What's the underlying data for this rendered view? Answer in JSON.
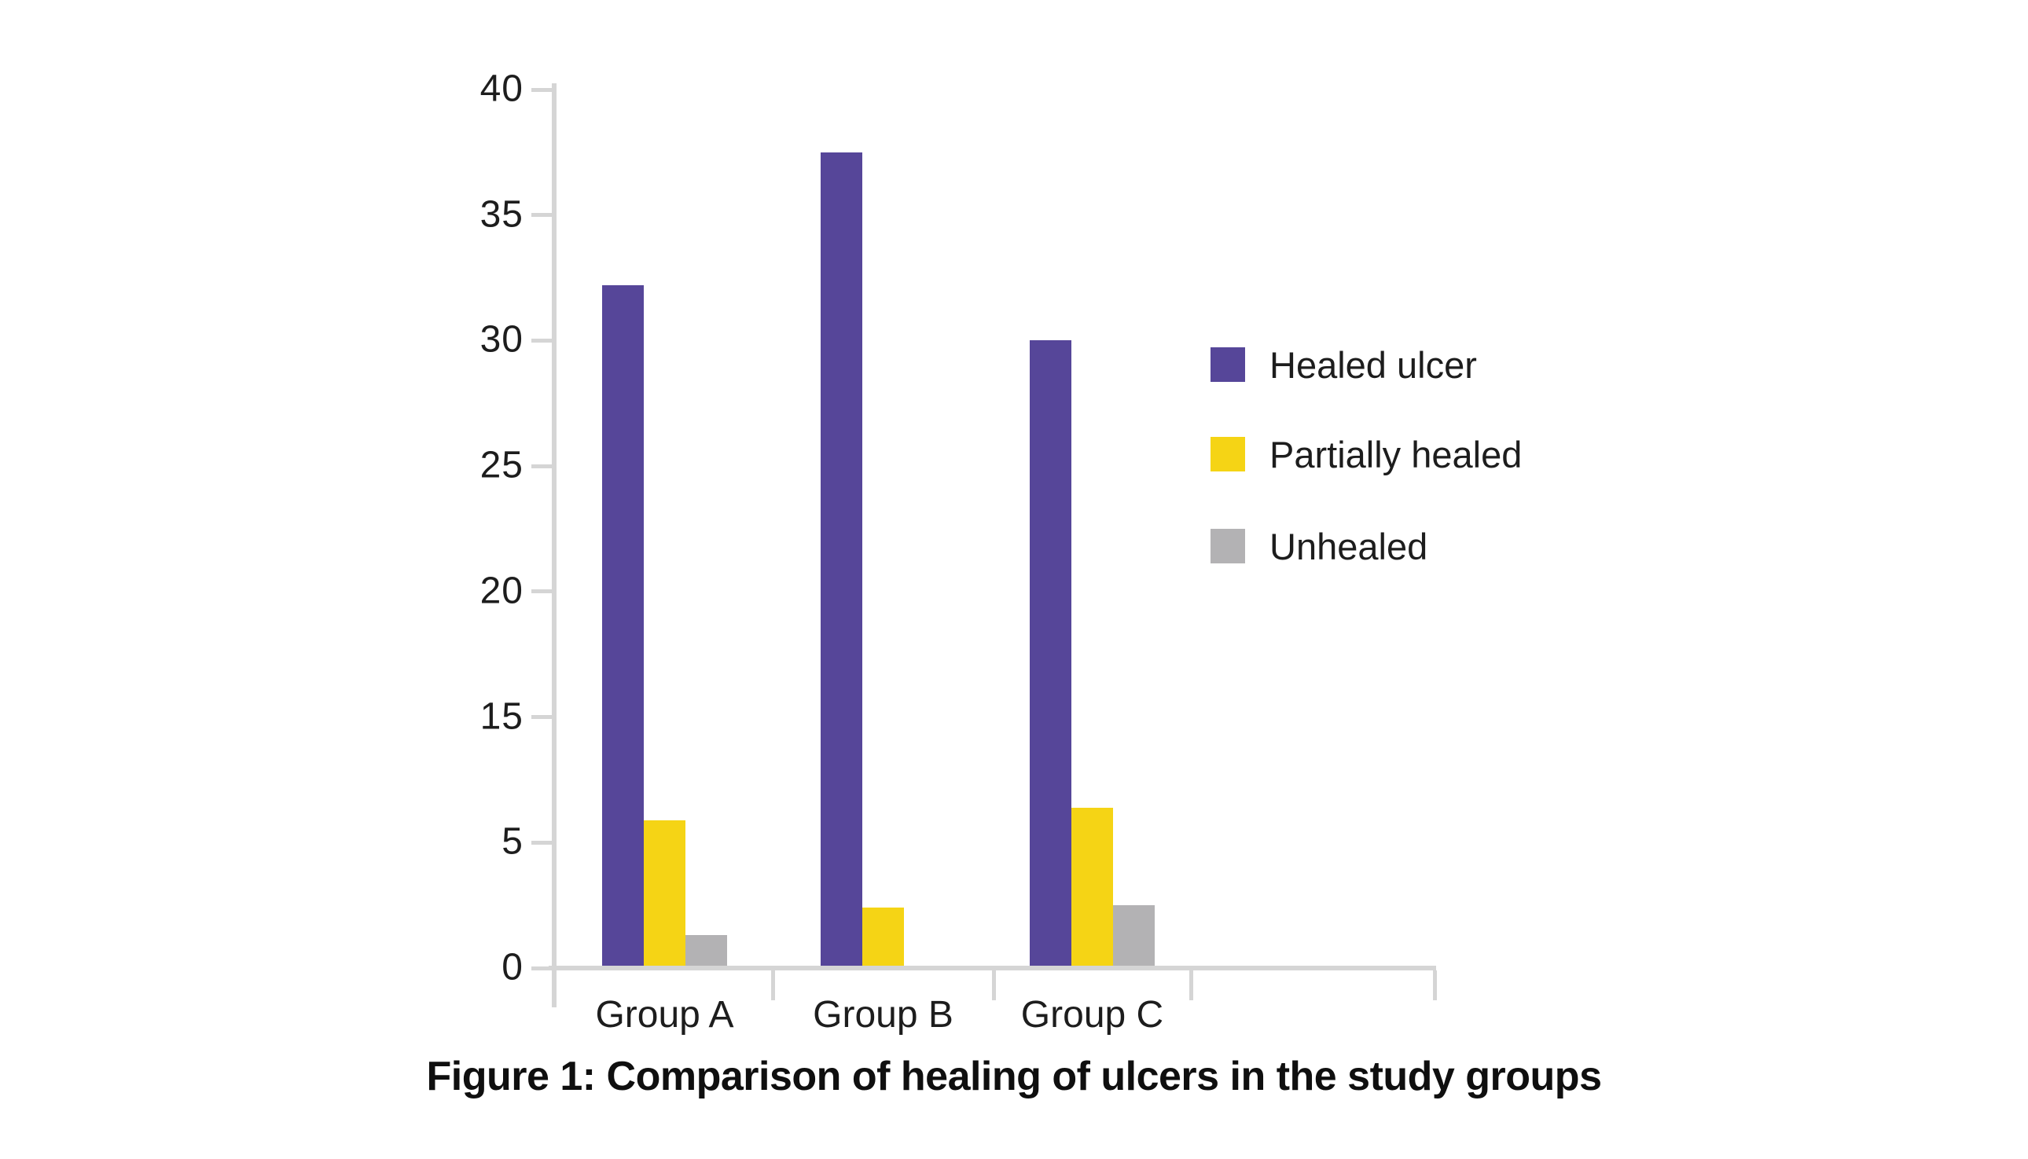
{
  "figure": {
    "caption": "Figure 1: Comparison of healing of ulcers in the study groups"
  },
  "chart_data": {
    "type": "bar",
    "title": "Figure 1: Comparison of healing of ulcers in the study groups",
    "xlabel": "",
    "ylabel": "",
    "categories": [
      "Group A",
      "Group B",
      "Group C"
    ],
    "series": [
      {
        "name": "Healed ulcer",
        "color": "#564699",
        "values": [
          32.2,
          37.5,
          30
        ]
      },
      {
        "name": "Partially healed",
        "color": "#f5d415",
        "values": [
          6.8,
          2.4,
          7.8
        ]
      },
      {
        "name": "Unhealed",
        "color": "#b3b2b4",
        "values": [
          1.3,
          0,
          2.5
        ]
      }
    ],
    "y_tick_labels": [
      "0",
      "5",
      "15",
      "20",
      "25",
      "30",
      "35",
      "40"
    ],
    "y_axis_note": "8 evenly spaced ticks as printed in the original figure; the sequence jumps from 5 to 15",
    "ylim": [
      0,
      40
    ],
    "grid": false,
    "legend_position": "right",
    "axis_color": "#d5d5d5",
    "text_color": "#1d1d1d",
    "background_color": "#ffffff"
  }
}
